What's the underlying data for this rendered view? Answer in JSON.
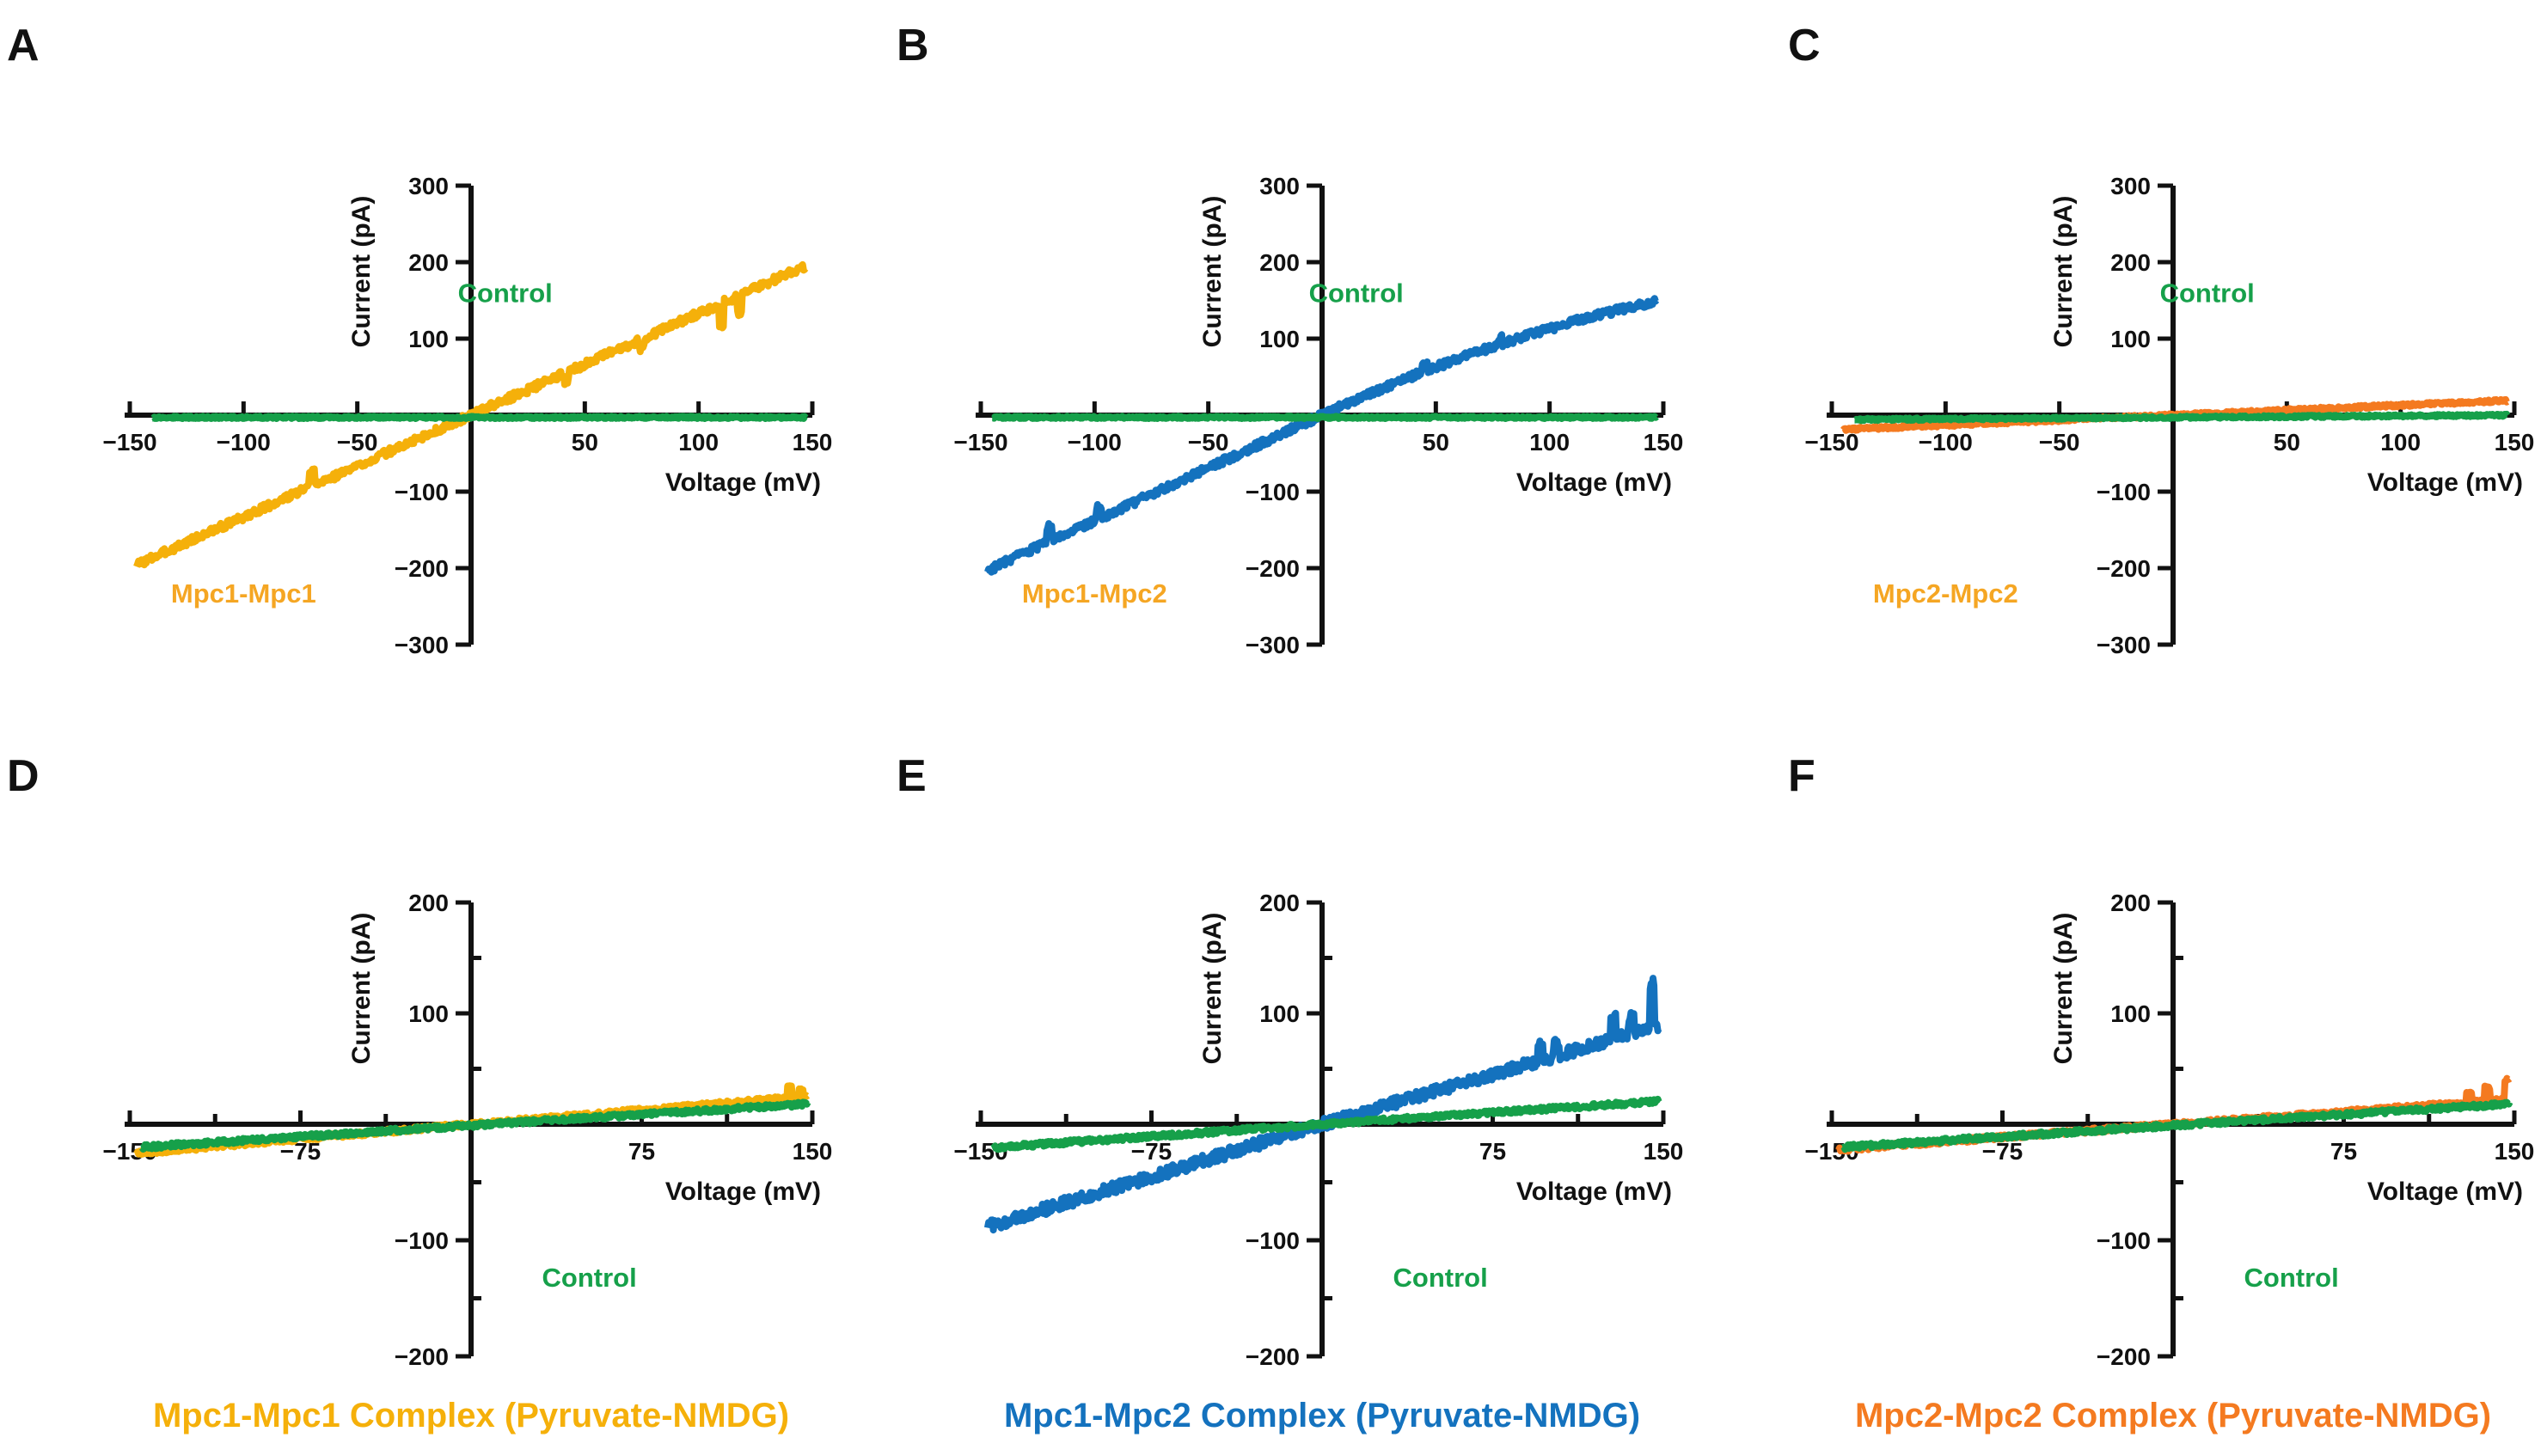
{
  "colors": {
    "mpc1_mpc1": "#F5B00A",
    "mpc1_mpc2": "#1472BE",
    "mpc2_mpc2": "#F47A20",
    "control": "#16A04A",
    "label_orange": "#F5A623",
    "axis": "#111111"
  },
  "chart_data": [
    {
      "panel": "A",
      "type": "line",
      "xlabel": "Voltage (mV)",
      "ylabel": "Current (pA)",
      "xlim": [
        -150,
        150
      ],
      "ylim": [
        -300,
        300
      ],
      "xticks": [
        -150,
        -100,
        -50,
        50,
        100,
        150
      ],
      "xticklabels": [
        "−150",
        "−100",
        "−50",
        "50",
        "100",
        "150"
      ],
      "yticks": [
        -300,
        -200,
        -100,
        100,
        200,
        300
      ],
      "yticklabels": [
        "−300",
        "−200",
        "−100",
        "100",
        "200",
        "300"
      ],
      "minor_yticks": [],
      "series": [
        {
          "name": "Mpc1-Mpc1",
          "color": "#F5B00A",
          "shape": "linear",
          "x_range": [
            -147,
            147
          ],
          "slope": 1.33,
          "offset": 0,
          "noise": 5,
          "spikes": [
            [
              110,
              -28
            ],
            [
              118,
              -22
            ],
            [
              75,
              -12
            ],
            [
              42,
              -10
            ],
            [
              -70,
              18
            ]
          ]
        },
        {
          "name": "Control",
          "color": "#16A04A",
          "shape": "linear",
          "x_range": [
            -140,
            147
          ],
          "slope": 0.0,
          "offset": -3,
          "noise": 1.5,
          "spikes": []
        }
      ],
      "annotations": [
        {
          "text": "Control",
          "x": 15,
          "y": 148,
          "color": "#16A04A"
        },
        {
          "text": "Mpc1-Mpc1",
          "x": -100,
          "y": -245,
          "color": "#F5A623"
        }
      ]
    },
    {
      "panel": "B",
      "type": "line",
      "xlabel": "Voltage (mV)",
      "ylabel": "Current (pA)",
      "xlim": [
        -150,
        150
      ],
      "ylim": [
        -300,
        300
      ],
      "xticks": [
        -150,
        -100,
        -50,
        50,
        100,
        150
      ],
      "xticklabels": [
        "−150",
        "−100",
        "−50",
        "50",
        "100",
        "150"
      ],
      "yticks": [
        -300,
        -200,
        -100,
        100,
        200,
        300
      ],
      "yticklabels": [
        "−300",
        "−200",
        "−100",
        "100",
        "200",
        "300"
      ],
      "minor_yticks": [],
      "series": [
        {
          "name": "Mpc1-Mpc2",
          "color": "#1472BE",
          "shape": "sublinear",
          "x_range": [
            -147,
            147
          ],
          "slope": 1.38,
          "offset": 0,
          "curve": 0.0025,
          "noise": 5,
          "spikes": [
            [
              -120,
              20
            ],
            [
              -98,
              15
            ],
            [
              78,
              8
            ],
            [
              45,
              10
            ]
          ]
        },
        {
          "name": "Control",
          "color": "#16A04A",
          "shape": "linear",
          "x_range": [
            -145,
            147
          ],
          "slope": 0.0,
          "offset": -3,
          "noise": 1.5,
          "spikes": []
        }
      ],
      "annotations": [
        {
          "text": "Control",
          "x": 15,
          "y": 148,
          "color": "#16A04A"
        },
        {
          "text": "Mpc1-Mpc2",
          "x": -100,
          "y": -245,
          "color": "#F5A623"
        }
      ]
    },
    {
      "panel": "C",
      "type": "line",
      "xlabel": "Voltage (mV)",
      "ylabel": "Current (pA)",
      "xlim": [
        -150,
        150
      ],
      "ylim": [
        -300,
        300
      ],
      "xticks": [
        -150,
        -100,
        -50,
        50,
        100,
        150
      ],
      "xticklabels": [
        "−150",
        "−100",
        "−50",
        "50",
        "100",
        "150"
      ],
      "yticks": [
        -300,
        -200,
        -100,
        100,
        200,
        300
      ],
      "yticklabels": [
        "−300",
        "−200",
        "−100",
        "100",
        "200",
        "300"
      ],
      "minor_yticks": [],
      "series": [
        {
          "name": "Mpc2-Mpc2",
          "color": "#F47A20",
          "shape": "linear",
          "x_range": [
            -145,
            147
          ],
          "slope": 0.13,
          "offset": 0,
          "noise": 2,
          "spikes": []
        },
        {
          "name": "Control",
          "color": "#16A04A",
          "shape": "linear",
          "x_range": [
            -140,
            147
          ],
          "slope": 0.02,
          "offset": -3,
          "noise": 1.5,
          "spikes": []
        }
      ],
      "annotations": [
        {
          "text": "Control",
          "x": 15,
          "y": 148,
          "color": "#16A04A"
        },
        {
          "text": "Mpc2-Mpc2",
          "x": -100,
          "y": -245,
          "color": "#F5A623"
        }
      ]
    },
    {
      "panel": "D",
      "type": "line",
      "xlabel": "Voltage (mV)",
      "ylabel": "Current (pA)",
      "xlim": [
        -150,
        150
      ],
      "ylim": [
        -200,
        200
      ],
      "xticks": [
        -150,
        -75,
        75,
        150
      ],
      "xticklabels": [
        "−150",
        "−75",
        "75",
        "150"
      ],
      "minor_xticks": [
        -112.5,
        -37.5,
        37.5,
        112.5
      ],
      "yticks": [
        -200,
        -100,
        100,
        200
      ],
      "yticklabels": [
        "−200",
        "−100",
        "100",
        "200"
      ],
      "minor_yticks": [
        -150,
        -50,
        50,
        150
      ],
      "series": [
        {
          "name": "Mpc1-Mpc1",
          "color": "#F5B00A",
          "shape": "linear",
          "x_range": [
            -147,
            148
          ],
          "slope": 0.17,
          "offset": 0,
          "noise": 2,
          "spikes": [
            [
              140,
              10
            ],
            [
              145,
              7
            ]
          ]
        },
        {
          "name": "Control",
          "color": "#16A04A",
          "shape": "linear",
          "x_range": [
            -145,
            148
          ],
          "slope": 0.13,
          "offset": -1,
          "noise": 2,
          "spikes": []
        }
      ],
      "annotations": [
        {
          "text": "Control",
          "x": 52,
          "y": -140,
          "color": "#16A04A"
        }
      ],
      "caption": {
        "text": "Mpc1-Mpc1 Complex (Pyruvate-NMDG)",
        "color": "#F5B00A"
      }
    },
    {
      "panel": "E",
      "type": "line",
      "xlabel": "Voltage (mV)",
      "ylabel": "Current (pA)",
      "xlim": [
        -150,
        150
      ],
      "ylim": [
        -200,
        200
      ],
      "xticks": [
        -150,
        -75,
        75,
        150
      ],
      "xticklabels": [
        "−150",
        "−75",
        "75",
        "150"
      ],
      "minor_xticks": [
        -112.5,
        -37.5,
        37.5,
        112.5
      ],
      "yticks": [
        -200,
        -100,
        100,
        200
      ],
      "yticklabels": [
        "−200",
        "−100",
        "100",
        "200"
      ],
      "minor_yticks": [
        -150,
        -50,
        50,
        150
      ],
      "series": [
        {
          "name": "Mpc1-Mpc2",
          "color": "#1472BE",
          "shape": "linear",
          "x_range": [
            -147,
            148
          ],
          "slope": 0.6,
          "offset": 0,
          "noise": 5,
          "spikes": [
            [
              96,
              14
            ],
            [
              103,
              12
            ],
            [
              128,
              18
            ],
            [
              145,
              40
            ],
            [
              136,
              15
            ]
          ]
        },
        {
          "name": "Control",
          "color": "#16A04A",
          "shape": "linear",
          "x_range": [
            -145,
            148
          ],
          "slope": 0.14,
          "offset": 0,
          "noise": 2,
          "spikes": []
        }
      ],
      "annotations": [
        {
          "text": "Control",
          "x": 52,
          "y": -140,
          "color": "#16A04A"
        }
      ],
      "caption": {
        "text": "Mpc1-Mpc2 Complex (Pyruvate-NMDG)",
        "color": "#1472BE"
      }
    },
    {
      "panel": "F",
      "type": "line",
      "xlabel": "Voltage (mV)",
      "ylabel": "Current (pA)",
      "xlim": [
        -150,
        150
      ],
      "ylim": [
        -200,
        200
      ],
      "xticks": [
        -150,
        -75,
        75,
        150
      ],
      "xticklabels": [
        "−150",
        "−75",
        "75",
        "150"
      ],
      "minor_xticks": [
        -112.5,
        -37.5,
        37.5,
        112.5
      ],
      "yticks": [
        -200,
        -100,
        100,
        200
      ],
      "yticklabels": [
        "−200",
        "−100",
        "100",
        "200"
      ],
      "minor_yticks": [
        -150,
        -50,
        50,
        150
      ],
      "series": [
        {
          "name": "Mpc2-Mpc2",
          "color": "#F47A20",
          "shape": "linear",
          "x_range": [
            -147,
            148
          ],
          "slope": 0.15,
          "offset": 0,
          "noise": 2,
          "spikes": [
            [
              138,
              12
            ],
            [
              147,
              18
            ],
            [
              130,
              8
            ]
          ]
        },
        {
          "name": "Control",
          "color": "#16A04A",
          "shape": "linear",
          "x_range": [
            -145,
            148
          ],
          "slope": 0.13,
          "offset": -1,
          "noise": 2,
          "spikes": []
        }
      ],
      "annotations": [
        {
          "text": "Control",
          "x": 52,
          "y": -140,
          "color": "#16A04A"
        }
      ],
      "caption": {
        "text": "Mpc2-Mpc2 Complex (Pyruvate-NMDG)",
        "color": "#F47A20"
      }
    }
  ]
}
